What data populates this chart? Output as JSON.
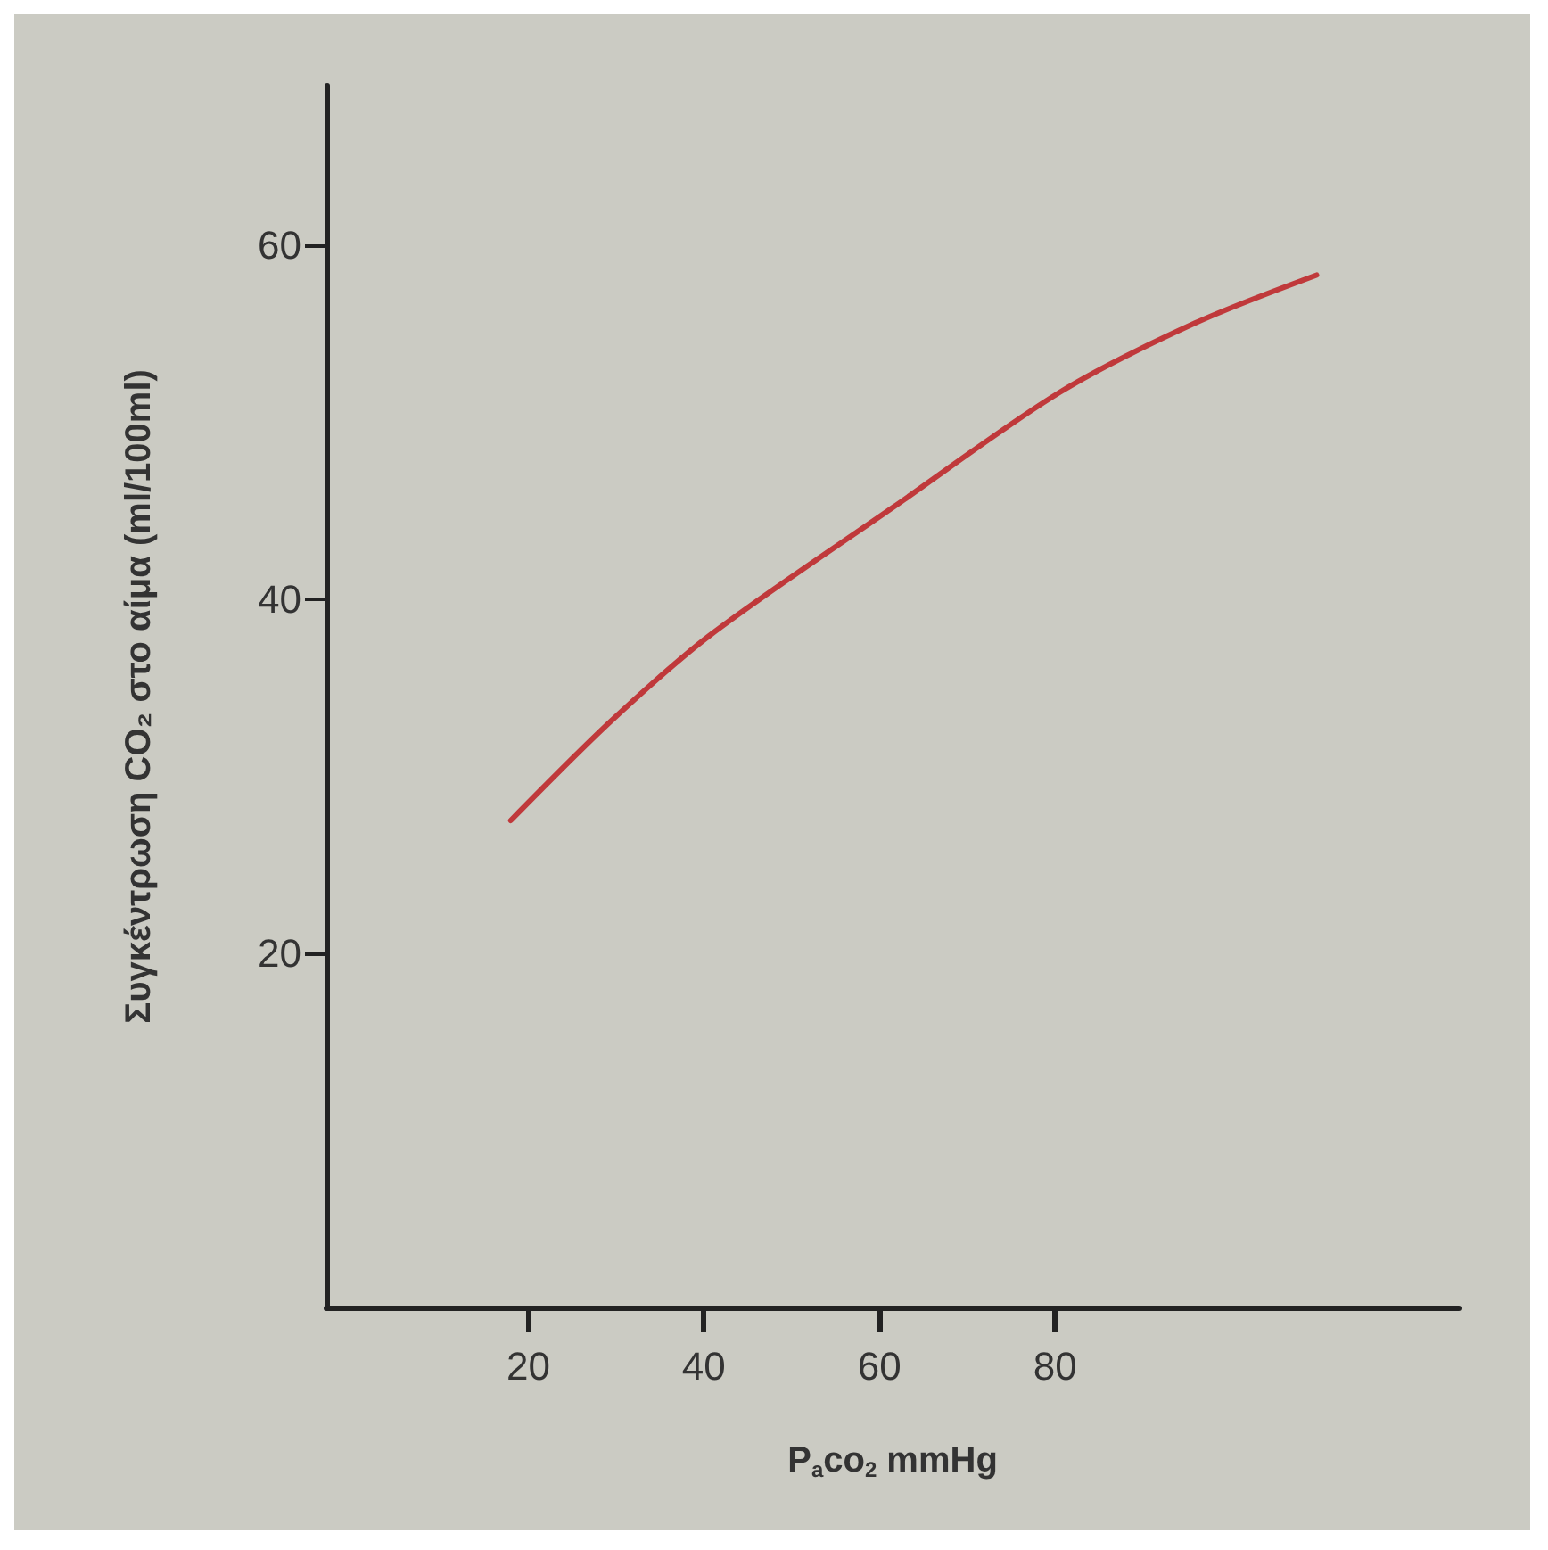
{
  "chart_data": {
    "type": "line",
    "xlabel": "P$_{a}$co$_{2}$ mmHg",
    "ylabel": "Συγκέντρωση CO₂ στο αίμα (ml/100ml)",
    "x": [
      18,
      29.4,
      40.8,
      61.6,
      80.6,
      96,
      109.8
    ],
    "series": [
      {
        "color": "#c0393b",
        "values": [
          27.5,
          33.1,
          38.0,
          45.2,
          51.7,
          55.6,
          58.3
        ]
      }
    ],
    "xlim": [
      -3,
      126
    ],
    "ylim": [
      0,
      69
    ],
    "xticks": [
      20,
      40,
      60,
      80
    ],
    "yticks": [
      20,
      40,
      60
    ],
    "grid": false,
    "marker": "none",
    "line_style": "solid"
  }
}
